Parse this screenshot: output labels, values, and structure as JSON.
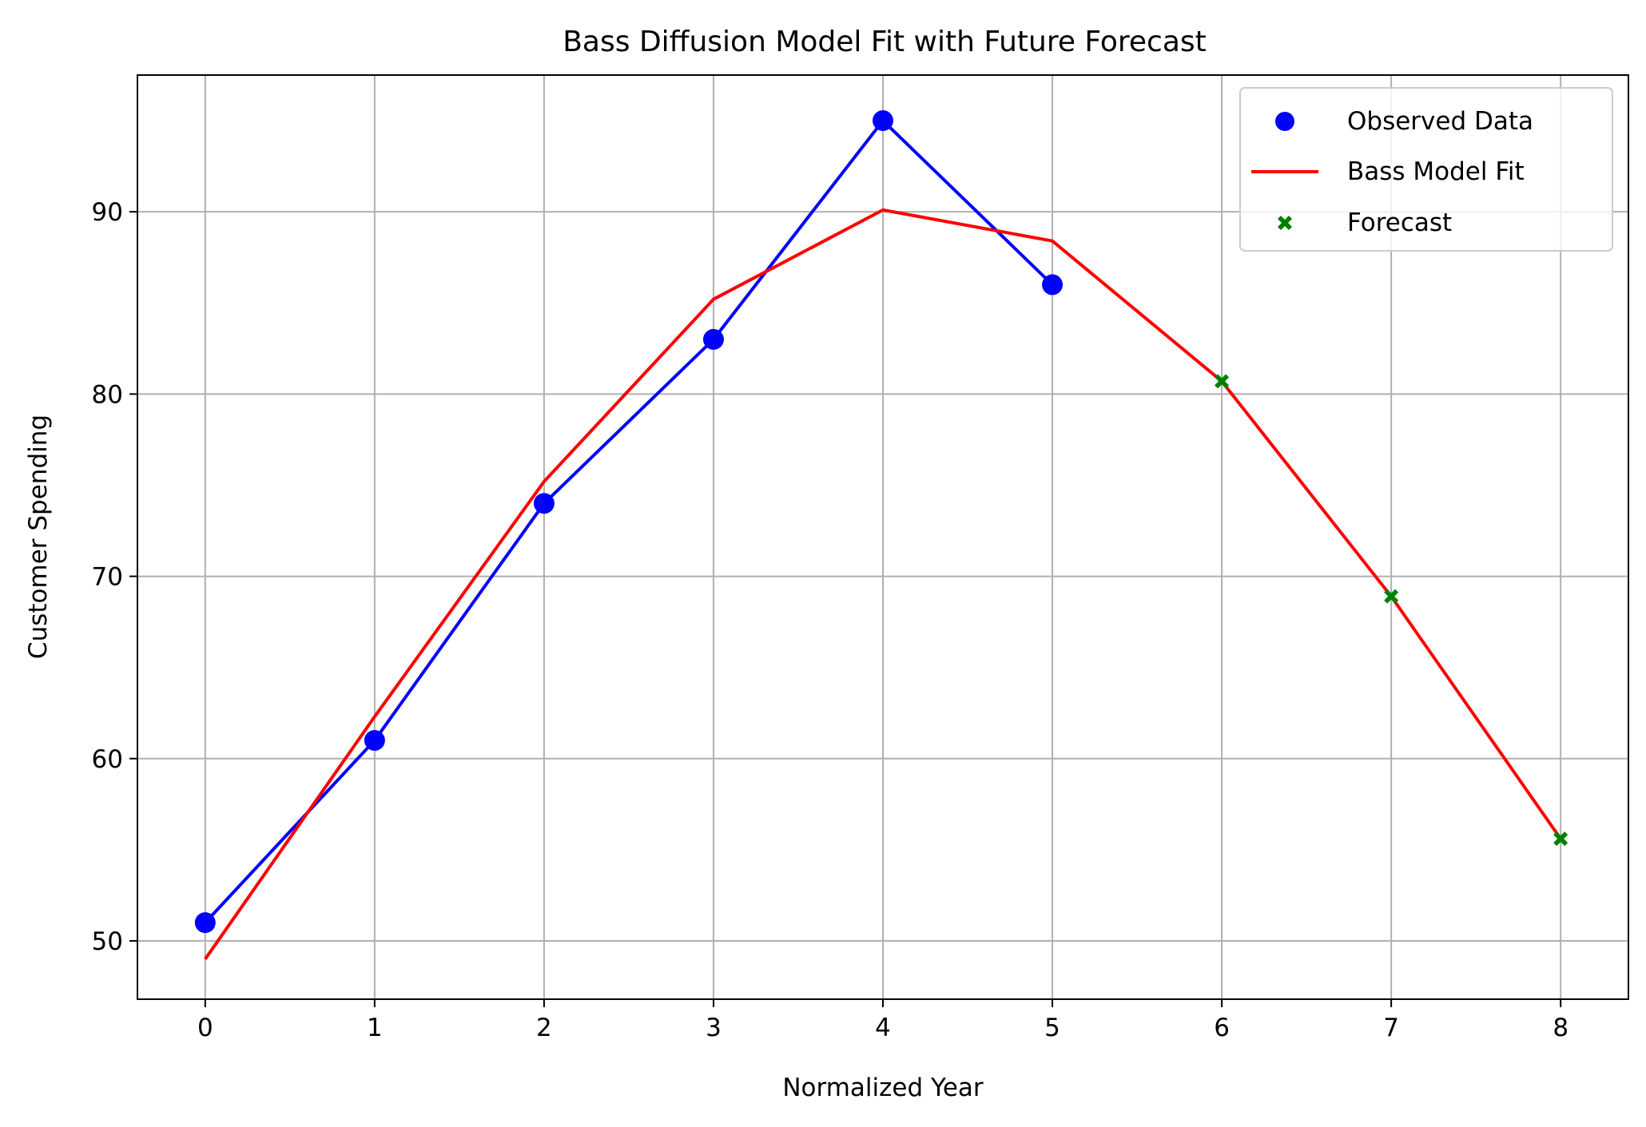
{
  "chart_data": {
    "type": "line",
    "title": "Bass Diffusion Model Fit with Future Forecast",
    "xlabel": "Normalized Year",
    "ylabel": "Customer Spending",
    "xlim": [
      -0.4,
      8.4
    ],
    "ylim": [
      46.8,
      97.5
    ],
    "xticks": [
      0,
      1,
      2,
      3,
      4,
      5,
      6,
      7,
      8
    ],
    "yticks": [
      50,
      60,
      70,
      80,
      90
    ],
    "grid": true,
    "legend_position": "upper right",
    "series": [
      {
        "name": "Observed Data",
        "kind": "scatter+line",
        "color": "#0000ff",
        "marker": "circle",
        "x": [
          0,
          1,
          2,
          3,
          4,
          5
        ],
        "y": [
          51,
          61,
          74,
          83,
          95,
          86
        ]
      },
      {
        "name": "Bass Model Fit",
        "kind": "line",
        "color": "#ff0000",
        "x": [
          0,
          1,
          2,
          3,
          4,
          5,
          6,
          7,
          8
        ],
        "y": [
          49.0,
          62.3,
          75.2,
          85.2,
          90.1,
          88.4,
          80.7,
          68.9,
          55.6
        ]
      },
      {
        "name": "Forecast",
        "kind": "scatter",
        "color": "#008000",
        "marker": "x-filled",
        "x": [
          6,
          7,
          8
        ],
        "y": [
          80.7,
          68.9,
          55.6
        ]
      }
    ]
  }
}
